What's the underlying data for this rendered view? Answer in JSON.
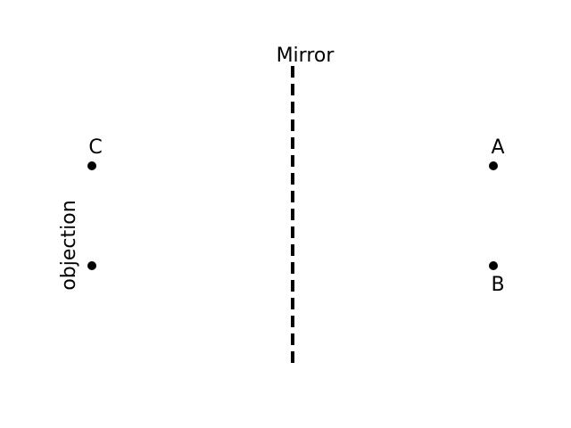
{
  "diagram": {
    "mirror_label": "Mirror",
    "side_label": "objection",
    "points": {
      "A": "A",
      "B": "B",
      "C": "C"
    },
    "colors": {
      "ink": "#000000",
      "background": "#ffffff"
    }
  }
}
